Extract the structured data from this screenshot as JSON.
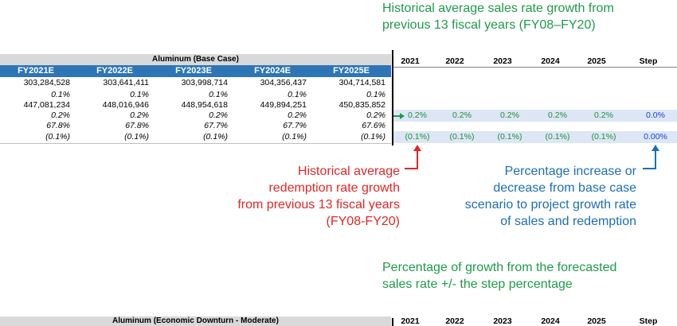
{
  "base_table": {
    "title": "Aluminum (Base Case)",
    "headers": [
      "FY2021E",
      "FY2022E",
      "FY2023E",
      "FY2024E",
      "FY2025E"
    ],
    "rows": [
      [
        "303,284,528",
        "303,641,411",
        "303,998,714",
        "304,356,437",
        "304,714,581"
      ],
      [
        "0.1%",
        "0.1%",
        "0.1%",
        "0.1%",
        "0.1%"
      ],
      [
        "447,081,234",
        "448,016,946",
        "448,954,618",
        "449,894,251",
        "450,835,852"
      ],
      [
        "0.2%",
        "0.2%",
        "0.2%",
        "0.2%",
        "0.2%"
      ],
      [
        "67.8%",
        "67.8%",
        "67.7%",
        "67.7%",
        "67.6%"
      ],
      [
        "(0.1%)",
        "(0.1%)",
        "(0.1%)",
        "(0.1%)",
        "(0.1%)"
      ]
    ]
  },
  "step_table": {
    "headers": [
      "2021",
      "2022",
      "2023",
      "2024",
      "2025",
      "Step"
    ],
    "sales_row": [
      "0.2%",
      "0.2%",
      "0.2%",
      "0.2%",
      "0.2%",
      "0.0%"
    ],
    "redemption_row": [
      "(0.1%)",
      "(0.1%)",
      "(0.1%)",
      "(0.1%)",
      "(0.1%)",
      "0.00%"
    ]
  },
  "annotations": {
    "sales_growth": [
      "Historical average sales rate growth from",
      "previous 13 fiscal years (FY08–FY20)"
    ],
    "redemption_growth": [
      "Historical average",
      "redemption rate growth",
      "from previous 13 fiscal years",
      "(FY08-FY20)"
    ],
    "step_pct": [
      "Percentage increase or",
      "decrease from base case",
      "scenario to project growth rate",
      "of sales and redemption"
    ],
    "forecast_growth": [
      "Percentage of growth from the forecasted",
      "sales rate +/- the step percentage"
    ]
  },
  "downturn_table": {
    "title": "Aluminum (Economic Downturn - Moderate)",
    "headers": [
      "2021",
      "2022",
      "2023",
      "2024",
      "2025",
      "Step"
    ]
  },
  "colors": {
    "header_blue": "#2e75b6",
    "band_blue": "#dde6f5",
    "green": "#1f9a4a",
    "red": "#e32626",
    "blue": "#1e6db3"
  }
}
